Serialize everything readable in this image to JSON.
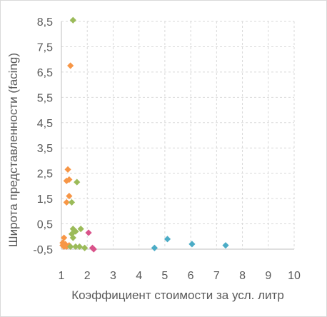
{
  "chart_data": {
    "type": "scatter",
    "title": "",
    "xlabel": "Коэффициент стоимости за усл. литр",
    "ylabel": "Широта представленности  (facing)",
    "xlim": [
      1,
      10
    ],
    "ylim": [
      -0.5,
      8.5
    ],
    "x_ticks": [
      "1",
      "2",
      "3",
      "4",
      "5",
      "6",
      "7",
      "8",
      "9",
      "10"
    ],
    "y_ticks": [
      "-0,5",
      "0,5",
      "1,5",
      "2,5",
      "3,5",
      "4,5",
      "5,5",
      "6,5",
      "7,5",
      "8,5"
    ],
    "grid": true,
    "legend": "none",
    "marker": "diamond",
    "series": [
      {
        "color": "#f79646",
        "points": [
          [
            1.35,
            6.75
          ],
          [
            1.25,
            2.65
          ],
          [
            1.3,
            2.25
          ],
          [
            1.2,
            2.2
          ],
          [
            1.3,
            1.6
          ],
          [
            1.2,
            1.35
          ],
          [
            1.1,
            -0.05
          ],
          [
            1.05,
            -0.25
          ],
          [
            1.15,
            -0.3
          ],
          [
            1.05,
            -0.35
          ],
          [
            1.2,
            -0.4
          ],
          [
            1.3,
            -0.35
          ],
          [
            1.1,
            -0.4
          ]
        ]
      },
      {
        "color": "#9bbb59",
        "points": [
          [
            1.45,
            8.55
          ],
          [
            1.6,
            2.15
          ],
          [
            1.4,
            1.35
          ],
          [
            1.45,
            0.3
          ],
          [
            1.55,
            0.2
          ],
          [
            1.75,
            0.3
          ],
          [
            1.4,
            0.1
          ],
          [
            1.45,
            -0.05
          ],
          [
            1.35,
            -0.4
          ],
          [
            1.55,
            -0.4
          ],
          [
            1.7,
            -0.4
          ],
          [
            1.9,
            -0.45
          ]
        ]
      },
      {
        "color": "#d9538a",
        "points": [
          [
            2.05,
            0.15
          ],
          [
            2.2,
            -0.45
          ],
          [
            2.25,
            -0.5
          ]
        ]
      },
      {
        "color": "#4bacc6",
        "points": [
          [
            4.6,
            -0.45
          ],
          [
            5.1,
            -0.1
          ],
          [
            6.05,
            -0.3
          ],
          [
            7.35,
            -0.35
          ]
        ]
      }
    ]
  }
}
